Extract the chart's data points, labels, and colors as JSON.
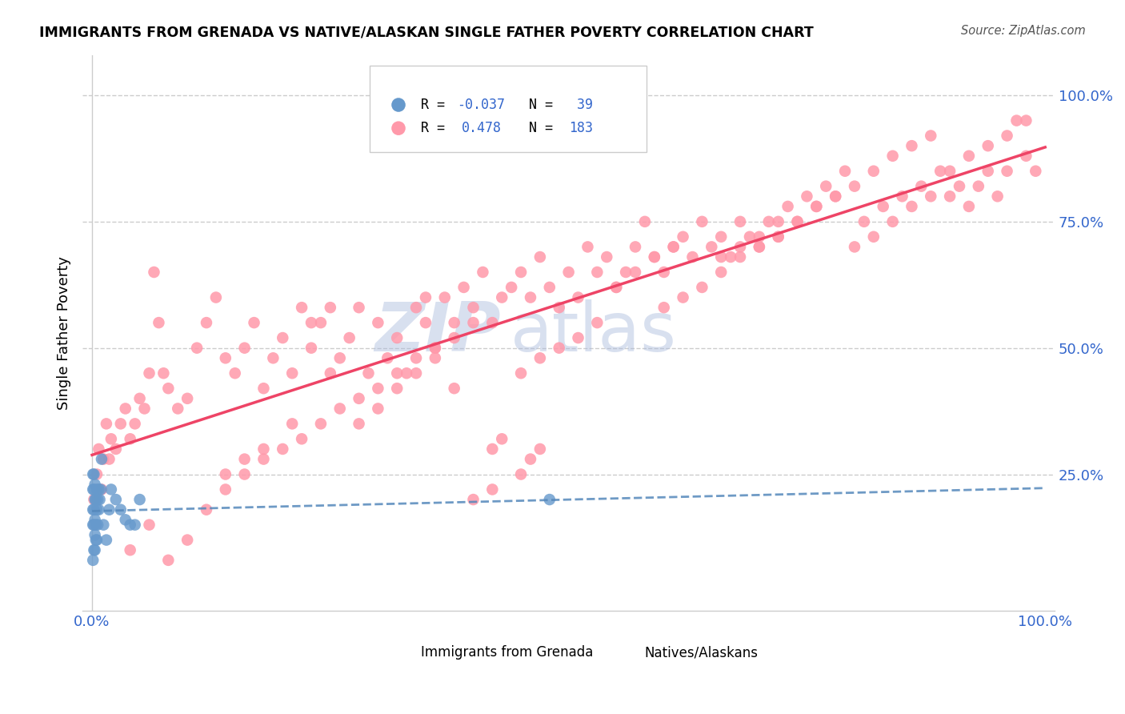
{
  "title": "IMMIGRANTS FROM GRENADA VS NATIVE/ALASKAN SINGLE FATHER POVERTY CORRELATION CHART",
  "source": "Source: ZipAtlas.com",
  "ylabel": "Single Father Poverty",
  "color_blue": "#6699CC",
  "color_pink": "#FF99AA",
  "color_blue_line": "#5588BB",
  "color_pink_line": "#EE4466",
  "color_axis": "#3366CC",
  "color_grid": "#cccccc",
  "watermark_zip": "ZIP",
  "watermark_atlas": "atlas",
  "legend_entries": [
    {
      "color": "#6699CC",
      "r_label": "R = ",
      "r_val": "-0.037",
      "n_label": "N = ",
      "n_val": " 39"
    },
    {
      "color": "#FF99AA",
      "r_label": "R =  ",
      "r_val": "0.478",
      "n_label": "N = ",
      "n_val": "183"
    }
  ],
  "bottom_legend": [
    {
      "color": "#6699CC",
      "label": "Immigrants from Grenada"
    },
    {
      "color": "#FF99AA",
      "label": "Natives/Alaskans"
    }
  ],
  "blue_x": [
    0.001,
    0.001,
    0.001,
    0.001,
    0.002,
    0.002,
    0.002,
    0.002,
    0.002,
    0.003,
    0.003,
    0.003,
    0.003,
    0.003,
    0.004,
    0.004,
    0.004,
    0.005,
    0.005,
    0.005,
    0.006,
    0.006,
    0.007,
    0.007,
    0.008,
    0.009,
    0.01,
    0.012,
    0.015,
    0.018,
    0.02,
    0.025,
    0.03,
    0.035,
    0.04,
    0.045,
    0.05,
    0.48,
    0.001
  ],
  "blue_y": [
    0.25,
    0.22,
    0.18,
    0.15,
    0.1,
    0.15,
    0.18,
    0.22,
    0.25,
    0.1,
    0.13,
    0.16,
    0.2,
    0.23,
    0.12,
    0.15,
    0.2,
    0.12,
    0.18,
    0.22,
    0.15,
    0.2,
    0.18,
    0.22,
    0.2,
    0.22,
    0.28,
    0.15,
    0.12,
    0.18,
    0.22,
    0.2,
    0.18,
    0.16,
    0.15,
    0.15,
    0.2,
    0.2,
    0.08
  ],
  "pink_x": [
    0.002,
    0.005,
    0.007,
    0.01,
    0.012,
    0.015,
    0.018,
    0.02,
    0.025,
    0.03,
    0.035,
    0.04,
    0.045,
    0.05,
    0.055,
    0.06,
    0.065,
    0.07,
    0.075,
    0.08,
    0.09,
    0.1,
    0.11,
    0.12,
    0.13,
    0.14,
    0.15,
    0.16,
    0.17,
    0.18,
    0.19,
    0.2,
    0.21,
    0.22,
    0.23,
    0.24,
    0.25,
    0.26,
    0.27,
    0.28,
    0.29,
    0.3,
    0.31,
    0.32,
    0.33,
    0.34,
    0.35,
    0.36,
    0.37,
    0.38,
    0.39,
    0.4,
    0.41,
    0.42,
    0.43,
    0.44,
    0.45,
    0.46,
    0.47,
    0.48,
    0.49,
    0.5,
    0.51,
    0.52,
    0.53,
    0.54,
    0.55,
    0.56,
    0.57,
    0.58,
    0.59,
    0.6,
    0.61,
    0.62,
    0.63,
    0.64,
    0.65,
    0.66,
    0.67,
    0.68,
    0.69,
    0.7,
    0.71,
    0.72,
    0.73,
    0.74,
    0.75,
    0.76,
    0.77,
    0.78,
    0.79,
    0.8,
    0.81,
    0.82,
    0.83,
    0.84,
    0.85,
    0.86,
    0.87,
    0.88,
    0.89,
    0.9,
    0.91,
    0.92,
    0.93,
    0.94,
    0.95,
    0.96,
    0.97,
    0.98,
    0.99,
    0.04,
    0.06,
    0.08,
    0.1,
    0.12,
    0.14,
    0.16,
    0.18,
    0.2,
    0.22,
    0.24,
    0.26,
    0.28,
    0.3,
    0.32,
    0.34,
    0.36,
    0.38,
    0.4,
    0.28,
    0.3,
    0.38,
    0.42,
    0.35,
    0.25,
    0.23,
    0.21,
    0.45,
    0.47,
    0.49,
    0.51,
    0.53,
    0.6,
    0.62,
    0.64,
    0.66,
    0.68,
    0.7,
    0.72,
    0.74,
    0.76,
    0.78,
    0.8,
    0.82,
    0.84,
    0.86,
    0.88,
    0.9,
    0.92,
    0.94,
    0.96,
    0.98,
    0.55,
    0.57,
    0.59,
    0.61,
    0.4,
    0.42,
    0.45,
    0.46,
    0.47,
    0.43,
    0.66,
    0.68,
    0.7,
    0.72,
    0.14,
    0.16,
    0.18,
    0.32,
    0.34,
    0.36
  ],
  "pink_y": [
    0.2,
    0.25,
    0.3,
    0.22,
    0.28,
    0.35,
    0.28,
    0.32,
    0.3,
    0.35,
    0.38,
    0.32,
    0.35,
    0.4,
    0.38,
    0.45,
    0.65,
    0.55,
    0.45,
    0.42,
    0.38,
    0.4,
    0.5,
    0.55,
    0.6,
    0.48,
    0.45,
    0.5,
    0.55,
    0.42,
    0.48,
    0.52,
    0.45,
    0.58,
    0.5,
    0.55,
    0.45,
    0.48,
    0.52,
    0.58,
    0.45,
    0.55,
    0.48,
    0.52,
    0.45,
    0.58,
    0.55,
    0.5,
    0.6,
    0.55,
    0.62,
    0.58,
    0.65,
    0.55,
    0.6,
    0.62,
    0.65,
    0.6,
    0.68,
    0.62,
    0.58,
    0.65,
    0.6,
    0.7,
    0.65,
    0.68,
    0.62,
    0.65,
    0.7,
    0.75,
    0.68,
    0.65,
    0.7,
    0.72,
    0.68,
    0.75,
    0.7,
    0.72,
    0.68,
    0.75,
    0.72,
    0.7,
    0.75,
    0.72,
    0.78,
    0.75,
    0.8,
    0.78,
    0.82,
    0.8,
    0.85,
    0.7,
    0.75,
    0.72,
    0.78,
    0.75,
    0.8,
    0.78,
    0.82,
    0.8,
    0.85,
    0.8,
    0.82,
    0.78,
    0.82,
    0.85,
    0.8,
    0.85,
    0.95,
    0.88,
    0.85,
    0.1,
    0.15,
    0.08,
    0.12,
    0.18,
    0.22,
    0.25,
    0.28,
    0.3,
    0.32,
    0.35,
    0.38,
    0.4,
    0.42,
    0.45,
    0.48,
    0.5,
    0.52,
    0.55,
    0.35,
    0.38,
    0.42,
    0.3,
    0.6,
    0.58,
    0.55,
    0.35,
    0.45,
    0.48,
    0.5,
    0.52,
    0.55,
    0.58,
    0.6,
    0.62,
    0.65,
    0.68,
    0.7,
    0.72,
    0.75,
    0.78,
    0.8,
    0.82,
    0.85,
    0.88,
    0.9,
    0.92,
    0.85,
    0.88,
    0.9,
    0.92,
    0.95,
    0.62,
    0.65,
    0.68,
    0.7,
    0.2,
    0.22,
    0.25,
    0.28,
    0.3,
    0.32,
    0.68,
    0.7,
    0.72,
    0.75,
    0.25,
    0.28,
    0.3,
    0.42,
    0.45,
    0.48
  ]
}
